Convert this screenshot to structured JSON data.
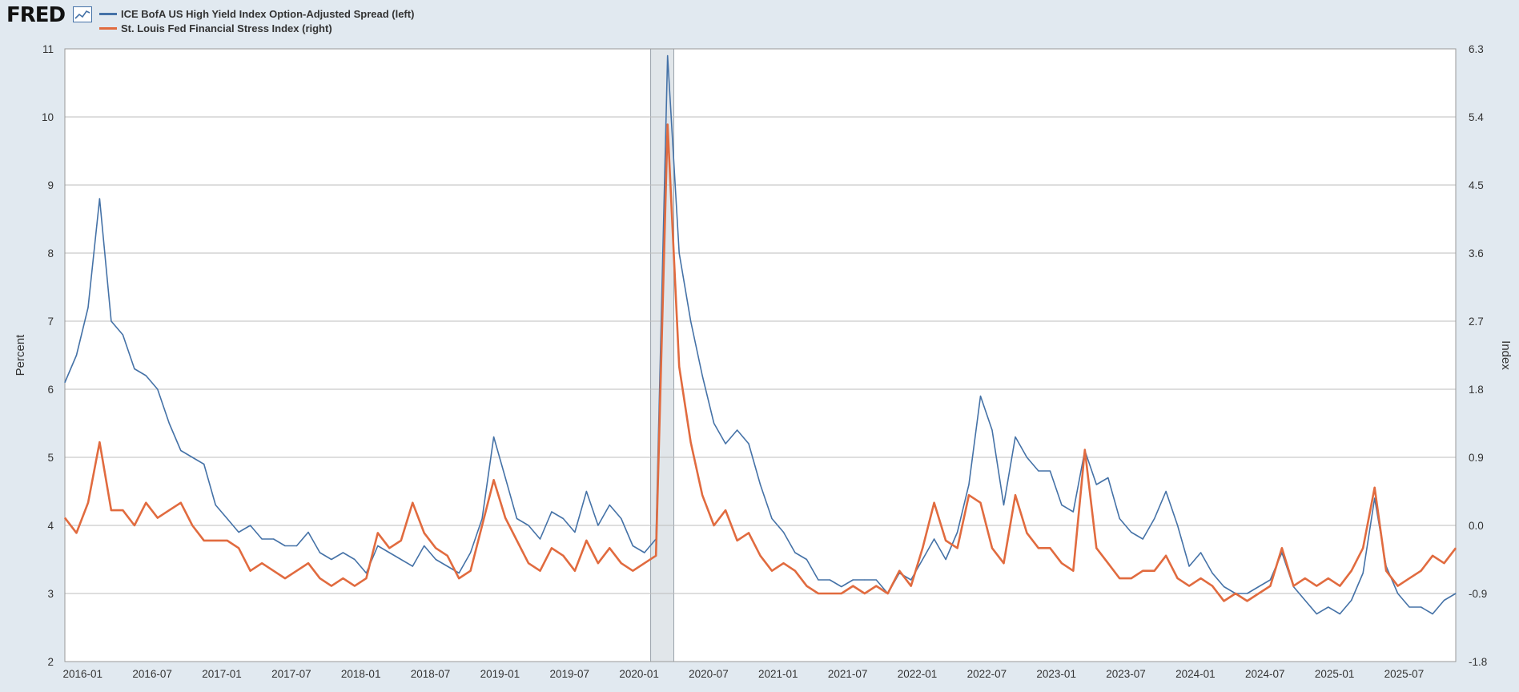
{
  "header": {
    "logo": "FRED",
    "logo_icon": "line-chart-icon"
  },
  "colors": {
    "background": "#e1e9f0",
    "plot_bg": "#ffffff",
    "grid": "#bcbcbc",
    "recession": "#e1e6ea",
    "left_series": "#4572a7",
    "right_series": "#e16b3f"
  },
  "chart_data": {
    "type": "line",
    "ylabel_left": "Percent",
    "ylabel_right": "Index",
    "ylim_left": [
      2,
      11
    ],
    "ylim_right": [
      -1.8,
      6.3
    ],
    "yticks_left": [
      "2",
      "3",
      "4",
      "5",
      "6",
      "7",
      "8",
      "9",
      "10",
      "11"
    ],
    "yticks_right": [
      "-1.8",
      "-0.9",
      "0.0",
      "0.9",
      "1.8",
      "2.7",
      "3.6",
      "4.5",
      "5.4",
      "6.3"
    ],
    "xlim": [
      "2015-11-15",
      "2025-11-15"
    ],
    "xticks": [
      "2016-01",
      "2016-07",
      "2017-01",
      "2017-07",
      "2018-01",
      "2018-07",
      "2019-01",
      "2019-07",
      "2020-01",
      "2020-07",
      "2021-01",
      "2021-07",
      "2022-01",
      "2022-07",
      "2023-01",
      "2023-07",
      "2024-01",
      "2024-07",
      "2025-01",
      "2025-07"
    ],
    "recession": [
      "2020-02",
      "2020-04"
    ],
    "grid": "horizontal",
    "legend_position": "top-left",
    "series": [
      {
        "name": "ICE BofA US High Yield Index Option-Adjusted Spread (left)",
        "axis": "left",
        "points": [
          [
            "2015-11",
            6.1
          ],
          [
            "2015-12",
            6.5
          ],
          [
            "2016-01",
            7.2
          ],
          [
            "2016-02",
            8.8
          ],
          [
            "2016-03",
            7.0
          ],
          [
            "2016-04",
            6.8
          ],
          [
            "2016-05",
            6.3
          ],
          [
            "2016-06",
            6.2
          ],
          [
            "2016-07",
            6.0
          ],
          [
            "2016-08",
            5.5
          ],
          [
            "2016-09",
            5.1
          ],
          [
            "2016-10",
            5.0
          ],
          [
            "2016-11",
            4.9
          ],
          [
            "2016-12",
            4.3
          ],
          [
            "2017-01",
            4.1
          ],
          [
            "2017-02",
            3.9
          ],
          [
            "2017-03",
            4.0
          ],
          [
            "2017-04",
            3.8
          ],
          [
            "2017-05",
            3.8
          ],
          [
            "2017-06",
            3.7
          ],
          [
            "2017-07",
            3.7
          ],
          [
            "2017-08",
            3.9
          ],
          [
            "2017-09",
            3.6
          ],
          [
            "2017-10",
            3.5
          ],
          [
            "2017-11",
            3.6
          ],
          [
            "2017-12",
            3.5
          ],
          [
            "2018-01",
            3.3
          ],
          [
            "2018-02",
            3.7
          ],
          [
            "2018-03",
            3.6
          ],
          [
            "2018-04",
            3.5
          ],
          [
            "2018-05",
            3.4
          ],
          [
            "2018-06",
            3.7
          ],
          [
            "2018-07",
            3.5
          ],
          [
            "2018-08",
            3.4
          ],
          [
            "2018-09",
            3.3
          ],
          [
            "2018-10",
            3.6
          ],
          [
            "2018-11",
            4.1
          ],
          [
            "2018-12",
            5.3
          ],
          [
            "2019-01",
            4.7
          ],
          [
            "2019-02",
            4.1
          ],
          [
            "2019-03",
            4.0
          ],
          [
            "2019-04",
            3.8
          ],
          [
            "2019-05",
            4.2
          ],
          [
            "2019-06",
            4.1
          ],
          [
            "2019-07",
            3.9
          ],
          [
            "2019-08",
            4.5
          ],
          [
            "2019-09",
            4.0
          ],
          [
            "2019-10",
            4.3
          ],
          [
            "2019-11",
            4.1
          ],
          [
            "2019-12",
            3.7
          ],
          [
            "2020-01",
            3.6
          ],
          [
            "2020-02",
            3.8
          ],
          [
            "2020-03",
            10.9
          ],
          [
            "2020-04",
            8.0
          ],
          [
            "2020-05",
            7.0
          ],
          [
            "2020-06",
            6.2
          ],
          [
            "2020-07",
            5.5
          ],
          [
            "2020-08",
            5.2
          ],
          [
            "2020-09",
            5.4
          ],
          [
            "2020-10",
            5.2
          ],
          [
            "2020-11",
            4.6
          ],
          [
            "2020-12",
            4.1
          ],
          [
            "2021-01",
            3.9
          ],
          [
            "2021-02",
            3.6
          ],
          [
            "2021-03",
            3.5
          ],
          [
            "2021-04",
            3.2
          ],
          [
            "2021-05",
            3.2
          ],
          [
            "2021-06",
            3.1
          ],
          [
            "2021-07",
            3.2
          ],
          [
            "2021-08",
            3.2
          ],
          [
            "2021-09",
            3.2
          ],
          [
            "2021-10",
            3.0
          ],
          [
            "2021-11",
            3.3
          ],
          [
            "2021-12",
            3.2
          ],
          [
            "2022-01",
            3.5
          ],
          [
            "2022-02",
            3.8
          ],
          [
            "2022-03",
            3.5
          ],
          [
            "2022-04",
            3.9
          ],
          [
            "2022-05",
            4.6
          ],
          [
            "2022-06",
            5.9
          ],
          [
            "2022-07",
            5.4
          ],
          [
            "2022-08",
            4.3
          ],
          [
            "2022-09",
            5.3
          ],
          [
            "2022-10",
            5.0
          ],
          [
            "2022-11",
            4.8
          ],
          [
            "2022-12",
            4.8
          ],
          [
            "2023-01",
            4.3
          ],
          [
            "2023-02",
            4.2
          ],
          [
            "2023-03",
            5.1
          ],
          [
            "2023-04",
            4.6
          ],
          [
            "2023-05",
            4.7
          ],
          [
            "2023-06",
            4.1
          ],
          [
            "2023-07",
            3.9
          ],
          [
            "2023-08",
            3.8
          ],
          [
            "2023-09",
            4.1
          ],
          [
            "2023-10",
            4.5
          ],
          [
            "2023-11",
            4.0
          ],
          [
            "2023-12",
            3.4
          ],
          [
            "2024-01",
            3.6
          ],
          [
            "2024-02",
            3.3
          ],
          [
            "2024-03",
            3.1
          ],
          [
            "2024-04",
            3.0
          ],
          [
            "2024-05",
            3.0
          ],
          [
            "2024-06",
            3.1
          ],
          [
            "2024-07",
            3.2
          ],
          [
            "2024-08",
            3.6
          ],
          [
            "2024-09",
            3.1
          ],
          [
            "2024-10",
            2.9
          ],
          [
            "2024-11",
            2.7
          ],
          [
            "2024-12",
            2.8
          ],
          [
            "2025-01",
            2.7
          ],
          [
            "2025-02",
            2.9
          ],
          [
            "2025-03",
            3.3
          ],
          [
            "2025-04",
            4.4
          ],
          [
            "2025-05",
            3.4
          ],
          [
            "2025-06",
            3.0
          ],
          [
            "2025-07",
            2.8
          ],
          [
            "2025-08",
            2.8
          ],
          [
            "2025-09",
            2.7
          ],
          [
            "2025-10",
            2.9
          ],
          [
            "2025-11",
            3.0
          ]
        ]
      },
      {
        "name": "St. Louis Fed Financial Stress Index (right)",
        "axis": "right",
        "points": [
          [
            "2015-11",
            0.1
          ],
          [
            "2015-12",
            -0.1
          ],
          [
            "2016-01",
            0.3
          ],
          [
            "2016-02",
            1.1
          ],
          [
            "2016-03",
            0.2
          ],
          [
            "2016-04",
            0.2
          ],
          [
            "2016-05",
            0.0
          ],
          [
            "2016-06",
            0.3
          ],
          [
            "2016-07",
            0.1
          ],
          [
            "2016-08",
            0.2
          ],
          [
            "2016-09",
            0.3
          ],
          [
            "2016-10",
            0.0
          ],
          [
            "2016-11",
            -0.2
          ],
          [
            "2016-12",
            -0.2
          ],
          [
            "2017-01",
            -0.2
          ],
          [
            "2017-02",
            -0.3
          ],
          [
            "2017-03",
            -0.6
          ],
          [
            "2017-04",
            -0.5
          ],
          [
            "2017-05",
            -0.6
          ],
          [
            "2017-06",
            -0.7
          ],
          [
            "2017-07",
            -0.6
          ],
          [
            "2017-08",
            -0.5
          ],
          [
            "2017-09",
            -0.7
          ],
          [
            "2017-10",
            -0.8
          ],
          [
            "2017-11",
            -0.7
          ],
          [
            "2017-12",
            -0.8
          ],
          [
            "2018-01",
            -0.7
          ],
          [
            "2018-02",
            -0.1
          ],
          [
            "2018-03",
            -0.3
          ],
          [
            "2018-04",
            -0.2
          ],
          [
            "2018-05",
            0.3
          ],
          [
            "2018-06",
            -0.1
          ],
          [
            "2018-07",
            -0.3
          ],
          [
            "2018-08",
            -0.4
          ],
          [
            "2018-09",
            -0.7
          ],
          [
            "2018-10",
            -0.6
          ],
          [
            "2018-11",
            0.0
          ],
          [
            "2018-12",
            0.6
          ],
          [
            "2019-01",
            0.1
          ],
          [
            "2019-02",
            -0.2
          ],
          [
            "2019-03",
            -0.5
          ],
          [
            "2019-04",
            -0.6
          ],
          [
            "2019-05",
            -0.3
          ],
          [
            "2019-06",
            -0.4
          ],
          [
            "2019-07",
            -0.6
          ],
          [
            "2019-08",
            -0.2
          ],
          [
            "2019-09",
            -0.5
          ],
          [
            "2019-10",
            -0.3
          ],
          [
            "2019-11",
            -0.5
          ],
          [
            "2019-12",
            -0.6
          ],
          [
            "2020-01",
            -0.5
          ],
          [
            "2020-02",
            -0.4
          ],
          [
            "2020-03",
            5.3
          ],
          [
            "2020-04",
            2.1
          ],
          [
            "2020-05",
            1.1
          ],
          [
            "2020-06",
            0.4
          ],
          [
            "2020-07",
            0.0
          ],
          [
            "2020-08",
            0.2
          ],
          [
            "2020-09",
            -0.2
          ],
          [
            "2020-10",
            -0.1
          ],
          [
            "2020-11",
            -0.4
          ],
          [
            "2020-12",
            -0.6
          ],
          [
            "2021-01",
            -0.5
          ],
          [
            "2021-02",
            -0.6
          ],
          [
            "2021-03",
            -0.8
          ],
          [
            "2021-04",
            -0.9
          ],
          [
            "2021-05",
            -0.9
          ],
          [
            "2021-06",
            -0.9
          ],
          [
            "2021-07",
            -0.8
          ],
          [
            "2021-08",
            -0.9
          ],
          [
            "2021-09",
            -0.8
          ],
          [
            "2021-10",
            -0.9
          ],
          [
            "2021-11",
            -0.6
          ],
          [
            "2021-12",
            -0.8
          ],
          [
            "2022-01",
            -0.3
          ],
          [
            "2022-02",
            0.3
          ],
          [
            "2022-03",
            -0.2
          ],
          [
            "2022-04",
            -0.3
          ],
          [
            "2022-05",
            0.4
          ],
          [
            "2022-06",
            0.3
          ],
          [
            "2022-07",
            -0.3
          ],
          [
            "2022-08",
            -0.5
          ],
          [
            "2022-09",
            0.4
          ],
          [
            "2022-10",
            -0.1
          ],
          [
            "2022-11",
            -0.3
          ],
          [
            "2022-12",
            -0.3
          ],
          [
            "2023-01",
            -0.5
          ],
          [
            "2023-02",
            -0.6
          ],
          [
            "2023-03",
            1.0
          ],
          [
            "2023-04",
            -0.3
          ],
          [
            "2023-05",
            -0.5
          ],
          [
            "2023-06",
            -0.7
          ],
          [
            "2023-07",
            -0.7
          ],
          [
            "2023-08",
            -0.6
          ],
          [
            "2023-09",
            -0.6
          ],
          [
            "2023-10",
            -0.4
          ],
          [
            "2023-11",
            -0.7
          ],
          [
            "2023-12",
            -0.8
          ],
          [
            "2024-01",
            -0.7
          ],
          [
            "2024-02",
            -0.8
          ],
          [
            "2024-03",
            -1.0
          ],
          [
            "2024-04",
            -0.9
          ],
          [
            "2024-05",
            -1.0
          ],
          [
            "2024-06",
            -0.9
          ],
          [
            "2024-07",
            -0.8
          ],
          [
            "2024-08",
            -0.3
          ],
          [
            "2024-09",
            -0.8
          ],
          [
            "2024-10",
            -0.7
          ],
          [
            "2024-11",
            -0.8
          ],
          [
            "2024-12",
            -0.7
          ],
          [
            "2025-01",
            -0.8
          ],
          [
            "2025-02",
            -0.6
          ],
          [
            "2025-03",
            -0.3
          ],
          [
            "2025-04",
            0.5
          ],
          [
            "2025-05",
            -0.6
          ],
          [
            "2025-06",
            -0.8
          ],
          [
            "2025-07",
            -0.7
          ],
          [
            "2025-08",
            -0.6
          ],
          [
            "2025-09",
            -0.4
          ],
          [
            "2025-10",
            -0.5
          ],
          [
            "2025-11",
            -0.3
          ]
        ]
      }
    ]
  }
}
